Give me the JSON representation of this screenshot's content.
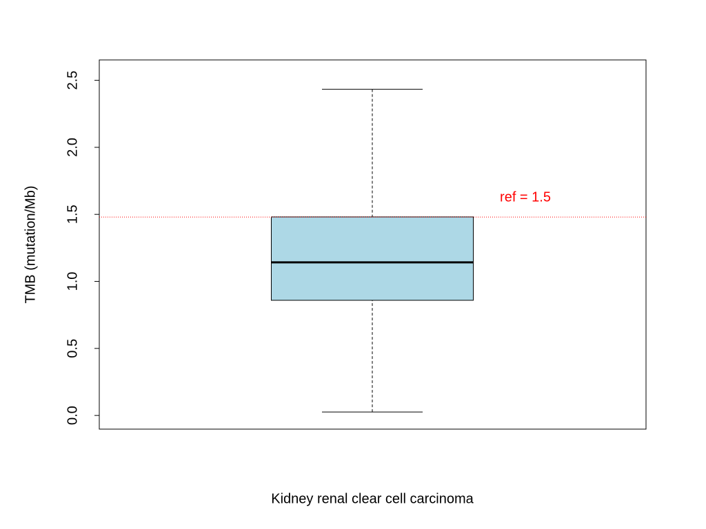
{
  "chart_data": {
    "type": "box",
    "x_label": "Kidney renal clear cell carcinoma",
    "y_label": "TMB (mutation/Mb)",
    "box": {
      "whislo": 0.026,
      "q1": 0.859,
      "med": 1.142,
      "q3": 1.481,
      "whishi": 2.433
    },
    "color": "#add8e6",
    "ref_line": {
      "value": 1.48,
      "color": "#ff0000"
    },
    "annotation": "ref = 1.5",
    "ylim": [
      -0.102,
      2.652
    ],
    "yticks": [
      {
        "value": 0,
        "label": "0.0"
      },
      0.5,
      {
        "value": 1,
        "label": "1.0"
      },
      1.5,
      {
        "value": 2,
        "label": "2.0"
      },
      2.5
    ]
  }
}
